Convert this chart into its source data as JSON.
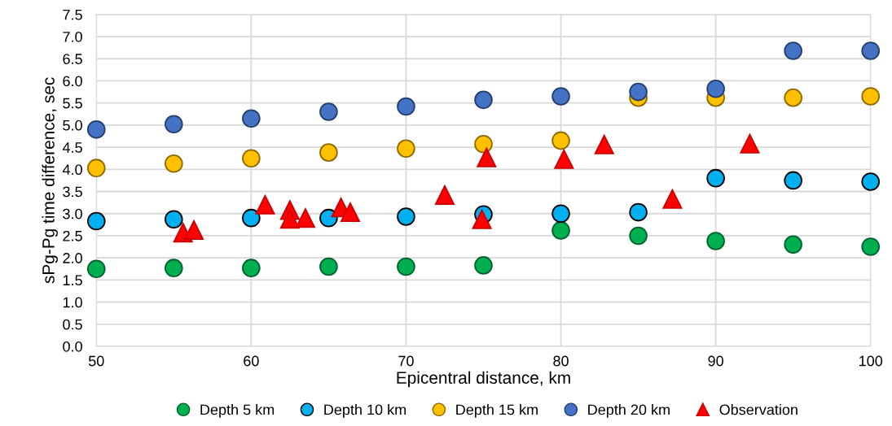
{
  "chart_data": {
    "type": "scatter",
    "xlabel": "Epicentral distance, km",
    "ylabel": "sPg-Pg time difference, sec",
    "xlim": [
      50,
      100
    ],
    "xticks": [
      50,
      60,
      70,
      80,
      90,
      100
    ],
    "ylim": [
      0,
      7.5
    ],
    "yticks": [
      {
        "value": 0,
        "label": "0.0"
      },
      {
        "value": 0.5,
        "label": "0.5"
      },
      {
        "value": 1,
        "label": "1.0"
      },
      {
        "value": 1.5,
        "label": "1.5"
      },
      {
        "value": 2,
        "label": "2.0"
      },
      {
        "value": 2.5,
        "label": "2.5"
      },
      {
        "value": 3,
        "label": "3.0"
      },
      {
        "value": 3.5,
        "label": "3.5"
      },
      {
        "value": 4,
        "label": "4.0"
      },
      {
        "value": 4.5,
        "label": "4.5"
      },
      {
        "value": 5,
        "label": "5.0"
      },
      {
        "value": 5.5,
        "label": "5.5"
      },
      {
        "value": 6,
        "label": "6.0"
      },
      {
        "value": 6.5,
        "label": "6.5"
      },
      {
        "value": 7,
        "label": "7.0"
      },
      {
        "value": 7.5,
        "label": "7.5"
      }
    ],
    "grid": true,
    "legend": "bottom",
    "marker": "circle",
    "series": [
      {
        "name": "Depth 5 km",
        "color": "#00b050",
        "x": [
          50,
          55,
          60,
          65,
          70,
          75,
          80,
          85,
          90,
          95,
          100
        ],
        "values": [
          1.75,
          1.77,
          1.77,
          1.8,
          1.8,
          1.83,
          2.62,
          2.5,
          2.38,
          2.3,
          2.25
        ]
      },
      {
        "name": "Depth 10 km",
        "color": "#00b0f0",
        "x": [
          50,
          55,
          60,
          65,
          70,
          75,
          80,
          85,
          90,
          95,
          100
        ],
        "values": [
          2.83,
          2.87,
          2.9,
          2.9,
          2.93,
          2.98,
          3.0,
          3.03,
          3.8,
          3.75,
          3.72
        ]
      },
      {
        "name": "Depth 15 km",
        "color": "#ffc000",
        "x": [
          50,
          55,
          60,
          65,
          70,
          75,
          80,
          85,
          90,
          95,
          100
        ],
        "values": [
          4.03,
          4.13,
          4.25,
          4.38,
          4.47,
          4.57,
          4.65,
          5.62,
          5.62,
          5.62,
          5.65
        ]
      },
      {
        "name": "Depth 20 km",
        "color": "#4472c4",
        "x": [
          50,
          55,
          60,
          65,
          70,
          75,
          80,
          85,
          90,
          95,
          100
        ],
        "values": [
          4.9,
          5.02,
          5.15,
          5.3,
          5.42,
          5.57,
          5.65,
          5.75,
          5.82,
          6.68,
          6.68
        ]
      },
      {
        "name": "Observation",
        "color": "#ff0000",
        "marker": "triangle",
        "x": [
          55.6,
          56.3,
          60.9,
          62.5,
          62.5,
          63.5,
          65.8,
          66.4,
          72.5,
          75.2,
          74.9,
          80.2,
          82.8,
          87.2,
          92.2
        ],
        "values": [
          2.57,
          2.63,
          3.2,
          3.08,
          2.88,
          2.9,
          3.14,
          3.03,
          3.42,
          4.27,
          2.87,
          4.23,
          4.56,
          3.33,
          4.58
        ]
      }
    ]
  }
}
